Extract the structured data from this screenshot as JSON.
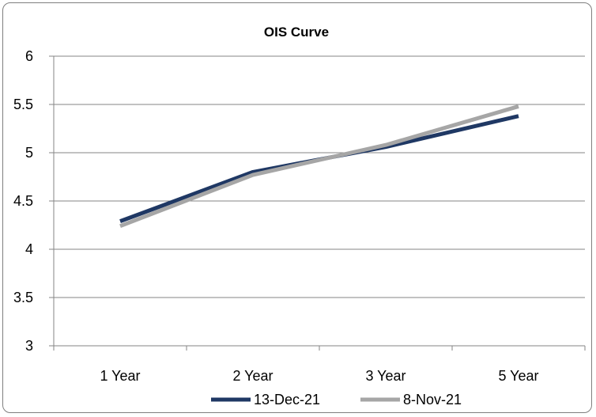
{
  "chart_data": {
    "type": "line",
    "title": "OIS Curve",
    "categories": [
      "1 Year",
      "2 Year",
      "3 Year",
      "5 Year"
    ],
    "series": [
      {
        "name": "13-Dec-21",
        "values": [
          4.29,
          4.8,
          5.06,
          5.38
        ],
        "color": "#1f3864"
      },
      {
        "name": "8-Nov-21",
        "values": [
          4.24,
          4.77,
          5.08,
          5.48
        ],
        "color": "#a6a6a6"
      }
    ],
    "ylim": [
      3,
      6
    ],
    "yticks": [
      "3",
      "3.5",
      "4",
      "4.5",
      "5",
      "5.5",
      "6"
    ],
    "grid": true,
    "legend": "bottom"
  }
}
